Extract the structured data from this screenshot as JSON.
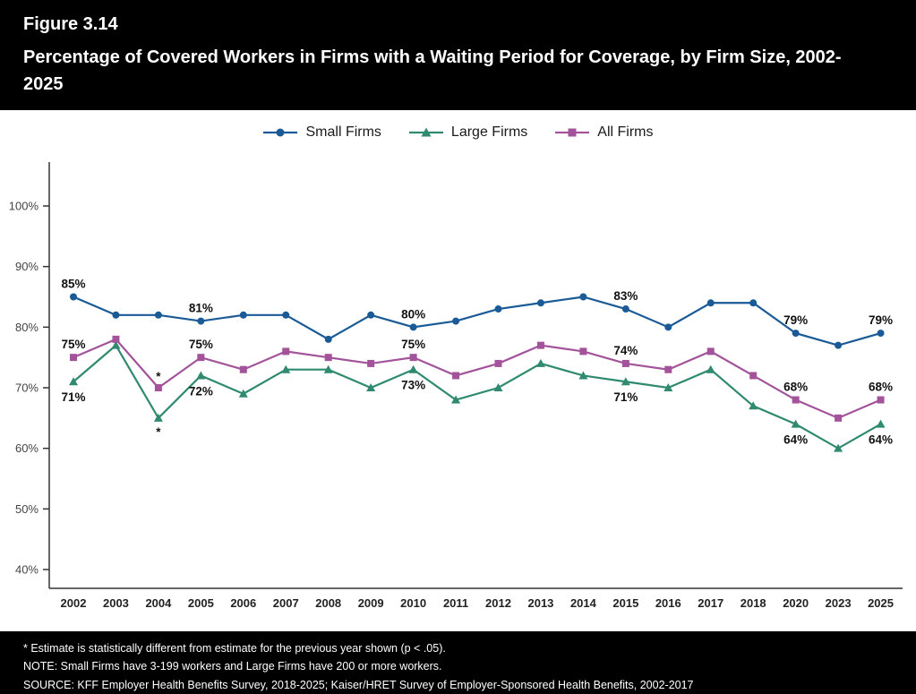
{
  "header": {
    "figure_label": "Figure 3.14",
    "title": "Percentage of Covered Workers in Firms with a Waiting Period for Coverage, by Firm Size, 2002-2025"
  },
  "chart_data": {
    "type": "line",
    "title": "Percentage of Covered Workers in Firms with a Waiting Period for Coverage, by Firm Size, 2002-2025",
    "legend_position": "top",
    "grid": false,
    "xlabel": "",
    "ylabel": "",
    "ylim": [
      37,
      107
    ],
    "yticks": [
      40,
      50,
      60,
      70,
      80,
      90,
      100
    ],
    "ytick_suffix": "%",
    "categories": [
      "2002",
      "2003",
      "2004",
      "2005",
      "2006",
      "2007",
      "2008",
      "2009",
      "2010",
      "2011",
      "2012",
      "2013",
      "2014",
      "2015",
      "2016",
      "2017",
      "2018",
      "2020",
      "2023",
      "2025"
    ],
    "series": [
      {
        "name": "Small Firms",
        "color": "#1a5a96",
        "marker": "circle",
        "values": [
          85,
          82,
          82,
          81,
          82,
          82,
          78,
          82,
          80,
          81,
          83,
          84,
          85,
          83,
          80,
          84,
          84,
          79,
          77,
          79
        ]
      },
      {
        "name": "Large Firms",
        "color": "#2f8a70",
        "marker": "triangle",
        "values": [
          71,
          77,
          65,
          72,
          69,
          73,
          73,
          70,
          73,
          68,
          70,
          74,
          72,
          71,
          70,
          73,
          67,
          64,
          60,
          64
        ]
      },
      {
        "name": "All Firms",
        "color": "#a3539a",
        "marker": "square",
        "values": [
          75,
          78,
          70,
          75,
          73,
          76,
          75,
          74,
          75,
          72,
          74,
          77,
          76,
          74,
          73,
          76,
          72,
          68,
          65,
          68
        ]
      }
    ],
    "annotations": [
      {
        "s": 0,
        "i": 0,
        "text": "85%",
        "dy": -10
      },
      {
        "s": 2,
        "i": 0,
        "text": "75%",
        "dy": -10
      },
      {
        "s": 1,
        "i": 0,
        "text": "71%",
        "dy": 22
      },
      {
        "s": 2,
        "i": 2,
        "text": "*",
        "dy": -8
      },
      {
        "s": 1,
        "i": 2,
        "text": "*",
        "dy": 20
      },
      {
        "s": 0,
        "i": 3,
        "text": "81%",
        "dy": -10
      },
      {
        "s": 2,
        "i": 3,
        "text": "75%",
        "dy": -10
      },
      {
        "s": 1,
        "i": 3,
        "text": "72%",
        "dy": 22
      },
      {
        "s": 0,
        "i": 8,
        "text": "80%",
        "dy": -10
      },
      {
        "s": 2,
        "i": 8,
        "text": "75%",
        "dy": -10
      },
      {
        "s": 1,
        "i": 8,
        "text": "73%",
        "dy": 22
      },
      {
        "s": 0,
        "i": 13,
        "text": "83%",
        "dy": -10
      },
      {
        "s": 2,
        "i": 13,
        "text": "74%",
        "dy": -10
      },
      {
        "s": 1,
        "i": 13,
        "text": "71%",
        "dy": 22
      },
      {
        "s": 0,
        "i": 17,
        "text": "79%",
        "dy": -10
      },
      {
        "s": 2,
        "i": 17,
        "text": "68%",
        "dy": -10
      },
      {
        "s": 1,
        "i": 17,
        "text": "64%",
        "dy": 22
      },
      {
        "s": 0,
        "i": 19,
        "text": "79%",
        "dy": -10
      },
      {
        "s": 2,
        "i": 19,
        "text": "68%",
        "dy": -10
      },
      {
        "s": 1,
        "i": 19,
        "text": "64%",
        "dy": 22
      }
    ]
  },
  "footnotes": [
    "* Estimate is statistically different from estimate for the previous year shown (p < .05).",
    "NOTE: Small Firms have 3-199 workers and Large Firms have 200 or more workers.",
    "SOURCE: KFF Employer Health Benefits Survey, 2018-2025; Kaiser/HRET Survey of Employer-Sponsored Health Benefits, 2002-2017"
  ]
}
